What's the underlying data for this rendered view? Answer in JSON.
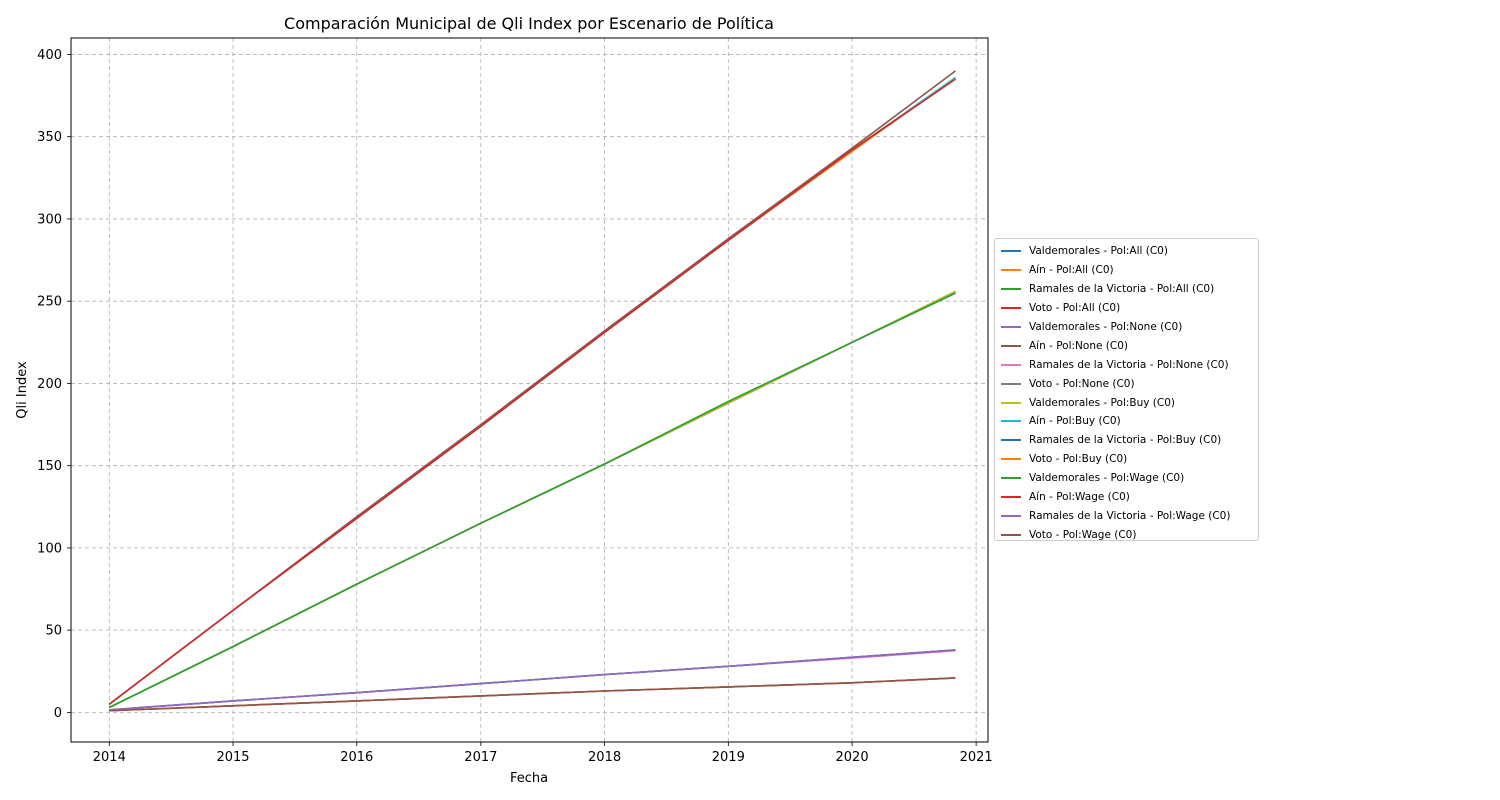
{
  "chart_data": {
    "type": "line",
    "title": "Comparación Municipal de Qli Index por Escenario de Política",
    "xlabel": "Fecha",
    "ylabel": "Qli Index",
    "xlim": [
      "2013-09-10",
      "2021-02-05"
    ],
    "ylim": [
      -18,
      410
    ],
    "x_ticks": [
      "2014",
      "2015",
      "2016",
      "2017",
      "2018",
      "2019",
      "2020",
      "2021"
    ],
    "y_ticks": [
      0,
      50,
      100,
      150,
      200,
      250,
      300,
      350,
      400
    ],
    "grid": true,
    "legend_position": "center-right outside",
    "x": [
      "2014-01-01",
      "2015-01-01",
      "2016-01-01",
      "2017-01-01",
      "2018-01-01",
      "2019-01-01",
      "2020-01-01",
      "2020-11-01"
    ],
    "series": [
      {
        "name": "Valdemorales - Pol:All (C0)",
        "color": "#1f77b4",
        "values": [
          3,
          40,
          78,
          115,
          151,
          188,
          225,
          255
        ]
      },
      {
        "name": "Aín - Pol:All (C0)",
        "color": "#ff7f0e",
        "values": [
          5,
          62,
          118,
          174,
          231,
          287,
          341,
          386
        ]
      },
      {
        "name": "Ramales de la Victoria - Pol:All (C0)",
        "color": "#2ca02c",
        "values": [
          1.5,
          7,
          12,
          17.5,
          23,
          28,
          33.5,
          38
        ]
      },
      {
        "name": "Voto - Pol:All (C0)",
        "color": "#d62728",
        "values": [
          1,
          4,
          7,
          10,
          13,
          15.5,
          18,
          21
        ]
      },
      {
        "name": "Valdemorales - Pol:None (C0)",
        "color": "#9467bd",
        "values": [
          3,
          40,
          78,
          115,
          151,
          188,
          225,
          256
        ]
      },
      {
        "name": "Aín - Pol:None (C0)",
        "color": "#8c564b",
        "values": [
          5,
          62,
          119,
          175,
          232,
          288,
          343,
          390
        ]
      },
      {
        "name": "Ramales de la Victoria - Pol:None (C0)",
        "color": "#e377c2",
        "values": [
          1.5,
          7,
          12,
          17.5,
          23,
          28,
          33,
          37.5
        ]
      },
      {
        "name": "Voto - Pol:None (C0)",
        "color": "#7f7f7f",
        "values": [
          1,
          4,
          7,
          10,
          13,
          15.5,
          18,
          21
        ]
      },
      {
        "name": "Valdemorales - Pol:Buy (C0)",
        "color": "#bcbd22",
        "values": [
          3,
          40,
          78,
          115,
          151,
          188,
          225,
          256
        ]
      },
      {
        "name": "Aín - Pol:Buy (C0)",
        "color": "#17becf",
        "values": [
          5,
          62,
          118,
          174,
          231,
          287,
          342,
          386
        ]
      },
      {
        "name": "Ramales de la Victoria - Pol:Buy (C0)",
        "color": "#1f77b4",
        "values": [
          1.5,
          7,
          12,
          17.5,
          23,
          28,
          33.5,
          38
        ]
      },
      {
        "name": "Voto - Pol:Buy (C0)",
        "color": "#ff7f0e",
        "values": [
          1,
          4,
          7,
          10,
          13,
          15.5,
          18,
          21
        ]
      },
      {
        "name": "Valdemorales - Pol:Wage (C0)",
        "color": "#2ca02c",
        "values": [
          3,
          40,
          78,
          115,
          151,
          189,
          225,
          255
        ]
      },
      {
        "name": "Aín - Pol:Wage (C0)",
        "color": "#d62728",
        "values": [
          5,
          62,
          118,
          174,
          231,
          287,
          342,
          385
        ]
      },
      {
        "name": "Ramales de la Victoria - Pol:Wage (C0)",
        "color": "#9467bd",
        "values": [
          1.5,
          7,
          12,
          17.5,
          23,
          28,
          33.5,
          38
        ]
      },
      {
        "name": "Voto - Pol:Wage (C0)",
        "color": "#8c564b",
        "values": [
          1,
          4,
          7,
          10,
          13,
          15.5,
          18,
          21
        ]
      }
    ]
  }
}
